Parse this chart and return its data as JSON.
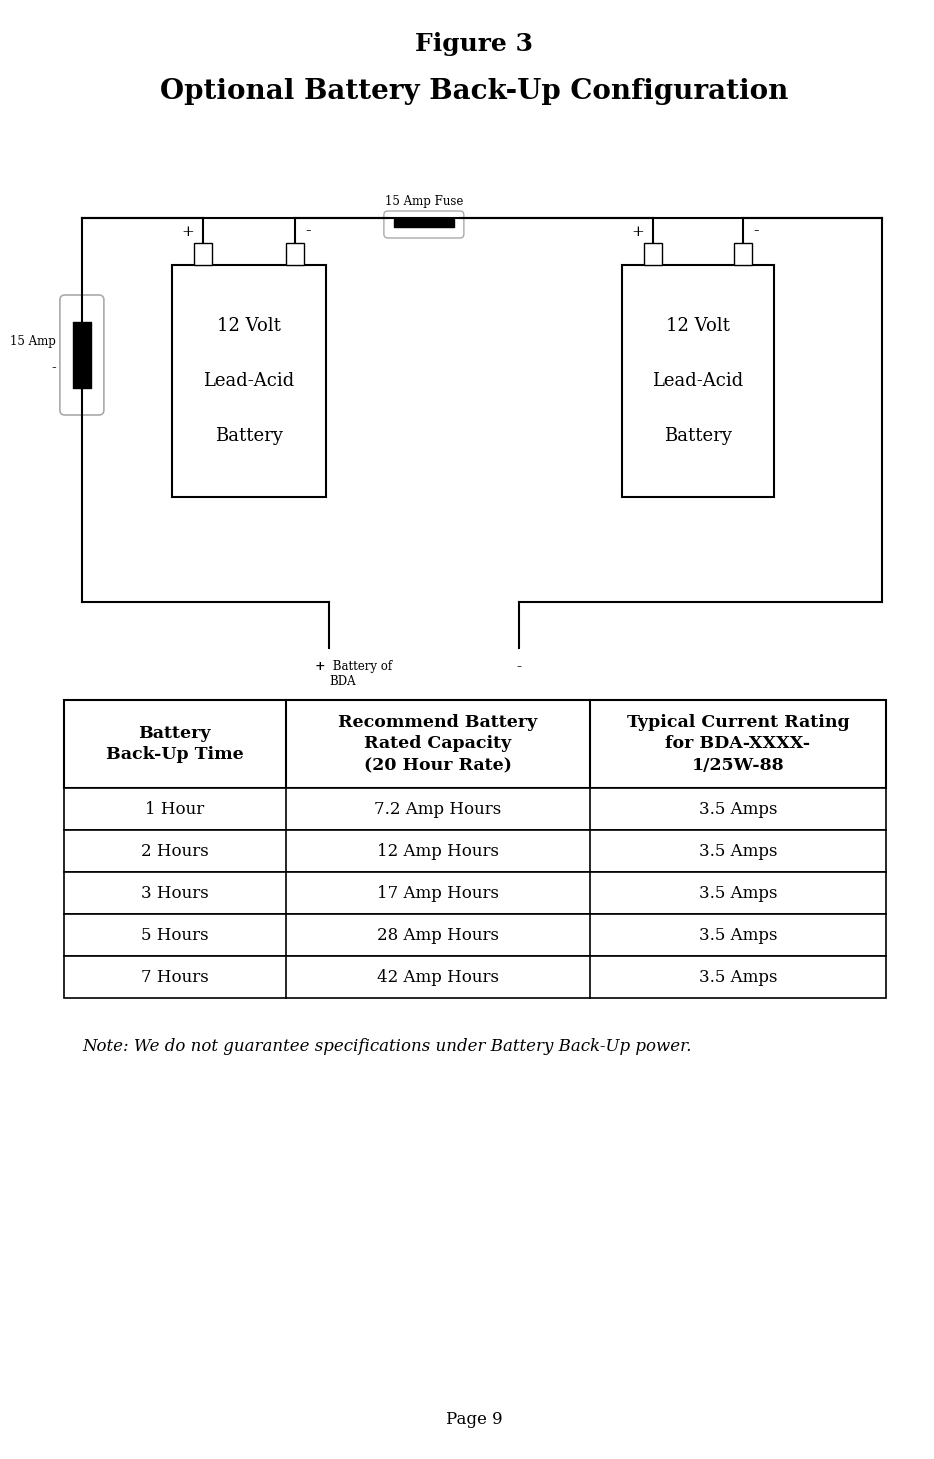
{
  "title": "Figure 3",
  "subtitle": "Optional Battery Back-Up Configuration",
  "fuse_label": "15 Amp Fuse",
  "left_amp_label1": "15 Amp",
  "left_amp_label2": "-",
  "bda_plus_label": "+ Battery of\nBDA",
  "bda_minus_label": "-",
  "table_headers": [
    "Battery\nBack-Up Time",
    "Recommend Battery\nRated Capacity\n(20 Hour Rate)",
    "Typical Current Rating\nfor BDA-XXXX-\n1/25W-88"
  ],
  "table_rows": [
    [
      "1 Hour",
      "7.2 Amp Hours",
      "3.5 Amps"
    ],
    [
      "2 Hours",
      "12 Amp Hours",
      "3.5 Amps"
    ],
    [
      "3 Hours",
      "17 Amp Hours",
      "3.5 Amps"
    ],
    [
      "5 Hours",
      "28 Amp Hours",
      "3.5 Amps"
    ],
    [
      "7 Hours",
      "42 Amp Hours",
      "3.5 Amps"
    ]
  ],
  "note": "Note: We do not guarantee specifications under Battery Back-Up power.",
  "page": "Page 9",
  "bg_color": "#ffffff",
  "line_color": "#000000",
  "text_color": "#000000"
}
